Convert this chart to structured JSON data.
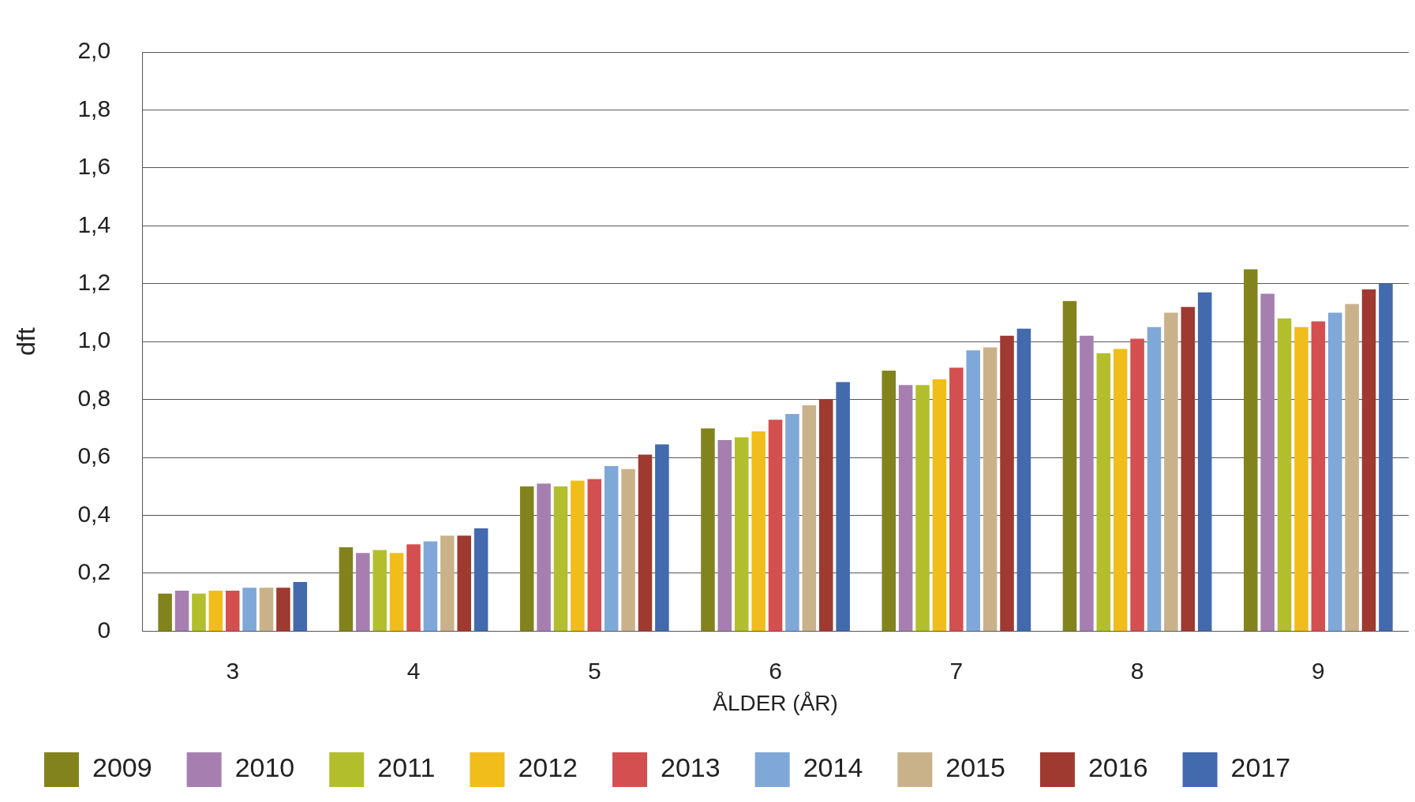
{
  "chart_data": {
    "type": "bar",
    "xlabel": "ÅLDER (ÅR)",
    "ylabel": "dft",
    "categories": [
      "3",
      "4",
      "5",
      "6",
      "7",
      "8",
      "9"
    ],
    "series": [
      {
        "name": "2009",
        "color": "#83831e",
        "values": [
          0.13,
          0.29,
          0.5,
          0.7,
          0.9,
          1.14,
          1.25
        ]
      },
      {
        "name": "2010",
        "color": "#a67fb0",
        "values": [
          0.14,
          0.27,
          0.51,
          0.66,
          0.85,
          1.02,
          1.165
        ]
      },
      {
        "name": "2011",
        "color": "#b3be2c",
        "values": [
          0.13,
          0.28,
          0.5,
          0.67,
          0.85,
          0.96,
          1.08
        ]
      },
      {
        "name": "2012",
        "color": "#f0bd1a",
        "values": [
          0.14,
          0.27,
          0.52,
          0.69,
          0.87,
          0.975,
          1.05
        ]
      },
      {
        "name": "2013",
        "color": "#d44f4f",
        "values": [
          0.14,
          0.3,
          0.525,
          0.73,
          0.91,
          1.01,
          1.07
        ]
      },
      {
        "name": "2014",
        "color": "#7fa8d8",
        "values": [
          0.15,
          0.31,
          0.57,
          0.75,
          0.97,
          1.05,
          1.1
        ]
      },
      {
        "name": "2015",
        "color": "#c9b28a",
        "values": [
          0.15,
          0.33,
          0.56,
          0.78,
          0.98,
          1.1,
          1.13
        ]
      },
      {
        "name": "2016",
        "color": "#9e3a30",
        "values": [
          0.15,
          0.33,
          0.61,
          0.8,
          1.02,
          1.12,
          1.18
        ]
      },
      {
        "name": "2017",
        "color": "#426aad",
        "values": [
          0.17,
          0.355,
          0.645,
          0.86,
          1.045,
          1.17,
          1.2
        ]
      }
    ],
    "ylim": [
      0,
      2
    ],
    "yticks": [
      0,
      {
        "value": 0.2,
        "label": "0,2"
      },
      {
        "value": 0.4,
        "label": "0,4"
      },
      {
        "value": 0.6,
        "label": "0,6"
      },
      {
        "value": 0.8,
        "label": "0,8"
      },
      {
        "value": 1,
        "label": "1,0"
      },
      {
        "value": 1.2,
        "label": "1,2"
      },
      {
        "value": 1.4,
        "label": "1,4"
      },
      {
        "value": 1.6,
        "label": "1,6"
      },
      {
        "value": 1.8,
        "label": "1,8"
      },
      {
        "value": 2,
        "label": "2,0"
      }
    ],
    "grid": "y",
    "legend": "bottom"
  }
}
